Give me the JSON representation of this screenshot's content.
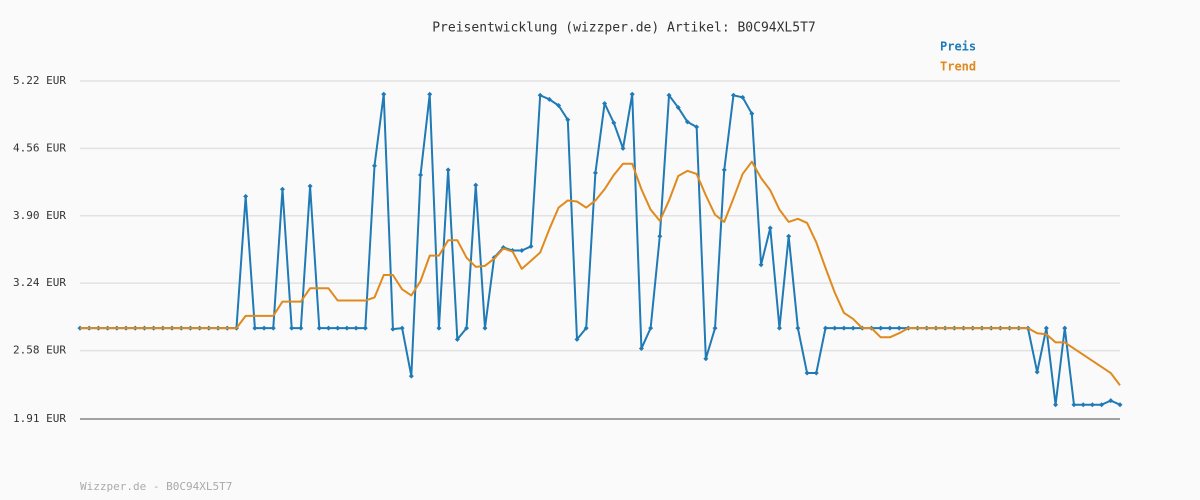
{
  "chart_data": {
    "type": "line",
    "title": "Preisentwicklung (wizzper.de) Artikel: B0C94XL5T7",
    "footer": "Wizzper.de - B0C94XL5T7",
    "ylim": [
      1.91,
      5.22
    ],
    "yticks": [
      {
        "value": 1.91,
        "label": "1.91 EUR"
      },
      {
        "value": 2.58,
        "label": "2.58 EUR"
      },
      {
        "value": 3.24,
        "label": "3.24 EUR"
      },
      {
        "value": 3.9,
        "label": "3.90 EUR"
      },
      {
        "value": 4.56,
        "label": "4.56 EUR"
      },
      {
        "value": 5.22,
        "label": "5.22 EUR"
      }
    ],
    "grid": true,
    "legend": "top-right",
    "series": [
      {
        "name": "Preis",
        "color": "#1f7ab5",
        "markers": true,
        "values": [
          2.8,
          2.8,
          2.8,
          2.8,
          2.8,
          2.8,
          2.8,
          2.8,
          2.8,
          2.8,
          2.8,
          2.8,
          2.8,
          2.8,
          2.8,
          2.8,
          2.8,
          2.8,
          4.09,
          2.8,
          2.8,
          2.8,
          4.16,
          2.8,
          2.8,
          4.19,
          2.8,
          2.8,
          2.8,
          2.8,
          2.8,
          2.8,
          4.39,
          5.09,
          2.79,
          2.8,
          2.33,
          4.3,
          5.09,
          2.8,
          4.35,
          2.69,
          2.8,
          4.2,
          2.8,
          3.49,
          3.59,
          3.56,
          3.56,
          3.6,
          5.08,
          5.04,
          4.98,
          4.84,
          2.69,
          2.8,
          4.32,
          5.0,
          4.81,
          4.56,
          5.09,
          2.6,
          2.8,
          3.7,
          5.08,
          4.96,
          4.82,
          4.77,
          2.5,
          2.8,
          4.35,
          5.08,
          5.06,
          4.9,
          3.42,
          3.78,
          2.8,
          3.7,
          2.8,
          2.36,
          2.36,
          2.8,
          2.8,
          2.8,
          2.8,
          2.8,
          2.8,
          2.8,
          2.8,
          2.8,
          2.8,
          2.8,
          2.8,
          2.8,
          2.8,
          2.8,
          2.8,
          2.8,
          2.8,
          2.8,
          2.8,
          2.8,
          2.8,
          2.8,
          2.37,
          2.8,
          2.05,
          2.8,
          2.05,
          2.05,
          2.05,
          2.05,
          2.09,
          2.05
        ]
      },
      {
        "name": "Trend",
        "color": "#e08a1e",
        "markers": false,
        "values": [
          2.8,
          2.8,
          2.8,
          2.8,
          2.8,
          2.8,
          2.8,
          2.8,
          2.8,
          2.8,
          2.8,
          2.8,
          2.8,
          2.8,
          2.8,
          2.8,
          2.8,
          2.8,
          2.92,
          2.92,
          2.92,
          2.92,
          3.06,
          3.06,
          3.06,
          3.19,
          3.19,
          3.19,
          3.07,
          3.07,
          3.07,
          3.07,
          3.1,
          3.32,
          3.32,
          3.18,
          3.12,
          3.26,
          3.51,
          3.51,
          3.66,
          3.66,
          3.49,
          3.4,
          3.41,
          3.48,
          3.58,
          3.55,
          3.38,
          3.46,
          3.54,
          3.77,
          3.98,
          4.05,
          4.04,
          3.98,
          4.05,
          4.16,
          4.3,
          4.41,
          4.41,
          4.16,
          3.96,
          3.85,
          4.05,
          4.29,
          4.34,
          4.31,
          4.1,
          3.91,
          3.84,
          4.07,
          4.31,
          4.43,
          4.27,
          4.15,
          3.96,
          3.84,
          3.87,
          3.83,
          3.64,
          3.39,
          3.15,
          2.95,
          2.89,
          2.8,
          2.8,
          2.71,
          2.71,
          2.75,
          2.8,
          2.8,
          2.8,
          2.8,
          2.8,
          2.8,
          2.8,
          2.8,
          2.8,
          2.8,
          2.8,
          2.8,
          2.8,
          2.8,
          2.75,
          2.74,
          2.66,
          2.66,
          2.6,
          2.54,
          2.48,
          2.42,
          2.36,
          2.24
        ]
      }
    ]
  }
}
